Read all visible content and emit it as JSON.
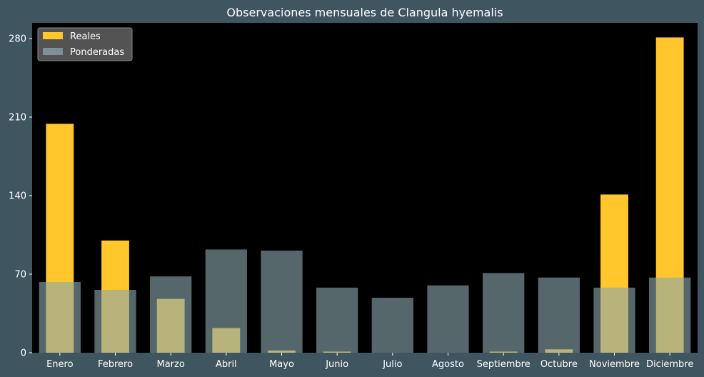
{
  "chart_data": {
    "type": "bar",
    "title": "Observaciones mensuales de Clangula hyemalis",
    "xlabel": "",
    "ylabel": "",
    "categories": [
      "Enero",
      "Febrero",
      "Marzo",
      "Abril",
      "Mayo",
      "Junio",
      "Julio",
      "Agosto",
      "Septiembre",
      "Octubre",
      "Noviembre",
      "Diciembre"
    ],
    "series": [
      {
        "name": "Reales",
        "color": "#ffc72c",
        "values": [
          204,
          100,
          48,
          22,
          2,
          1,
          0,
          0,
          1,
          3,
          141,
          281
        ]
      },
      {
        "name": "Ponderadas",
        "color": "#8aa6ad",
        "values": [
          63,
          56,
          68,
          92,
          91,
          58,
          49,
          60,
          71,
          67,
          58,
          67
        ]
      }
    ],
    "ylim": [
      0,
      294
    ],
    "yticks": [
      0,
      70,
      140,
      210,
      280
    ],
    "grid": false,
    "legend": "top-left",
    "background": "#000000",
    "figure_background": "#3f5560"
  }
}
